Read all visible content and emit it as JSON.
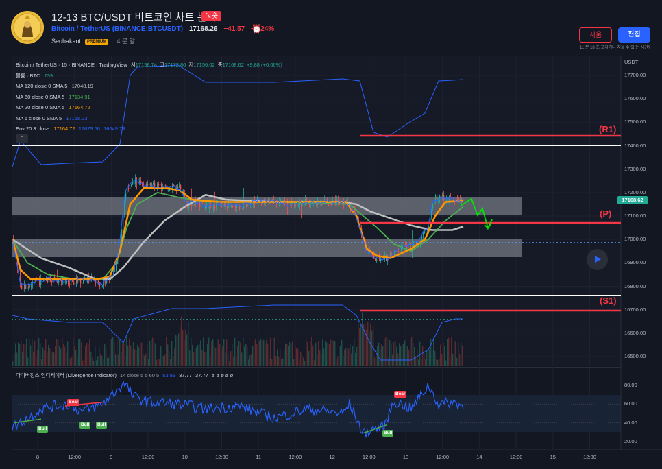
{
  "header": {
    "title": "12-13 BTC/USDT 비트코인 차트 분석",
    "direction_badge": "↘숏",
    "symbol": "Bitcoin / TetherUS",
    "exchange": "(BINANCE:BTCUSDT)",
    "price": "17168.26",
    "change": "−41.57",
    "change_pct": "−0.24%",
    "author": "Seohakant",
    "premium_badge": "PREMIUM",
    "time_ago": "4 분 앞",
    "delete_label": "지움",
    "edit_label": "편집",
    "edit_note": "11 분 18 초 고치거나 지울 수 있 는 시간?"
  },
  "legend": {
    "title": "Bitcoin / TetherUS · 15 · BINANCE · TradingView",
    "ohlc": [
      {
        "label": "시",
        "value": "17158.74"
      },
      {
        "label": "고",
        "value": "17172.80"
      },
      {
        "label": "저",
        "value": "17156.02"
      },
      {
        "label": "종",
        "value": "17168.62"
      }
    ],
    "change": "+9.88 (+0.06%)",
    "volume_label": "볼륨 · BTC",
    "volume_value": "739",
    "ma120_label": "MA 120 close 0 SMA 5",
    "ma120_value": "17048.19",
    "ma60_label": "MA 60 close 0 SMA 5",
    "ma60_value": "17134.91",
    "ma20_label": "MA 20 close 0 SMA 5",
    "ma20_value": "17164.72",
    "ma5_label": "MA 5 close 0 SMA 5",
    "ma5_value": "17158.23",
    "env_label": "Env 20 3 close",
    "env_values": [
      "17164.72",
      "17679.66",
      "16649.78"
    ],
    "collapse_glyph": "⌃"
  },
  "price_axis": {
    "unit": "USDT",
    "ticks": [
      "17700.00",
      "17600.00",
      "17500.00",
      "17400.00",
      "17300.00",
      "17200.00",
      "17100.00",
      "17000.00",
      "16900.00",
      "16800.00",
      "16700.00",
      "16600.00",
      "16500.00"
    ],
    "last_price": "17168.62"
  },
  "annotations": {
    "r1": "(R1)",
    "p": "(P)",
    "s1": "(S1)"
  },
  "divergence": {
    "title": "다이버전스 인디케이터 (Divergence Indicator)",
    "params": "14 close 5 5 60 5",
    "value_main": "53.83",
    "value_2": "37.77",
    "value_3": "37.77",
    "placeholders": "ø ø ø ø ø",
    "ticks": [
      "80.00",
      "60.00",
      "40.00",
      "20.00"
    ],
    "bear_label": "Bear",
    "bull_label": "Bull"
  },
  "time_axis": [
    "8",
    "12:00",
    "9",
    "12:00",
    "10",
    "12:00",
    "11",
    "12:00",
    "12",
    "12:00",
    "13",
    "12:00",
    "14",
    "12:00",
    "15",
    "12:00"
  ],
  "colors": {
    "background": "#131722",
    "up": "#26a69a",
    "down": "#ef5350",
    "ma5": "#2962ff",
    "ma20": "#ff9800",
    "ma60": "#4caf50",
    "ma120": "#c0c0c0",
    "envelope": "#2962ff",
    "resistance": "#f23645",
    "forecast": "#00e600"
  }
}
